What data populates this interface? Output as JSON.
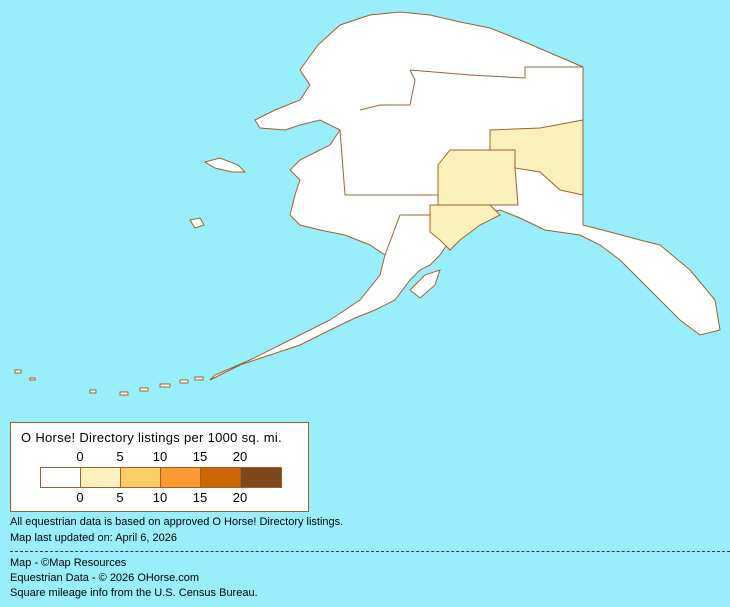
{
  "map": {
    "region": "Alaska",
    "colors": {
      "background": "#99EEFC",
      "border": "#A0602D",
      "level_0": "#FFFFFF",
      "level_1": "#FCF0BC"
    }
  },
  "legend": {
    "title": "O Horse! Directory listings per 1000 sq. mi.",
    "top_ticks": [
      "0",
      "5",
      "10",
      "15",
      "20"
    ],
    "bottom_ticks": [
      "0",
      "5",
      "10",
      "15",
      "20"
    ],
    "swatches": [
      "#FFFFFF",
      "#FCF0BC",
      "#FCCC66",
      "#FC9933",
      "#CC6600",
      "#7F4619"
    ]
  },
  "notes": {
    "data_basis": "All equestrian data is based on approved O Horse! Directory listings.",
    "updated": "Map last updated on: April 6, 2026"
  },
  "credits": {
    "map": "Map - ©Map Resources",
    "data": "Equestrian Data - © 2026 OHorse.com",
    "census": "Square mileage info from the U.S. Census Bureau."
  }
}
